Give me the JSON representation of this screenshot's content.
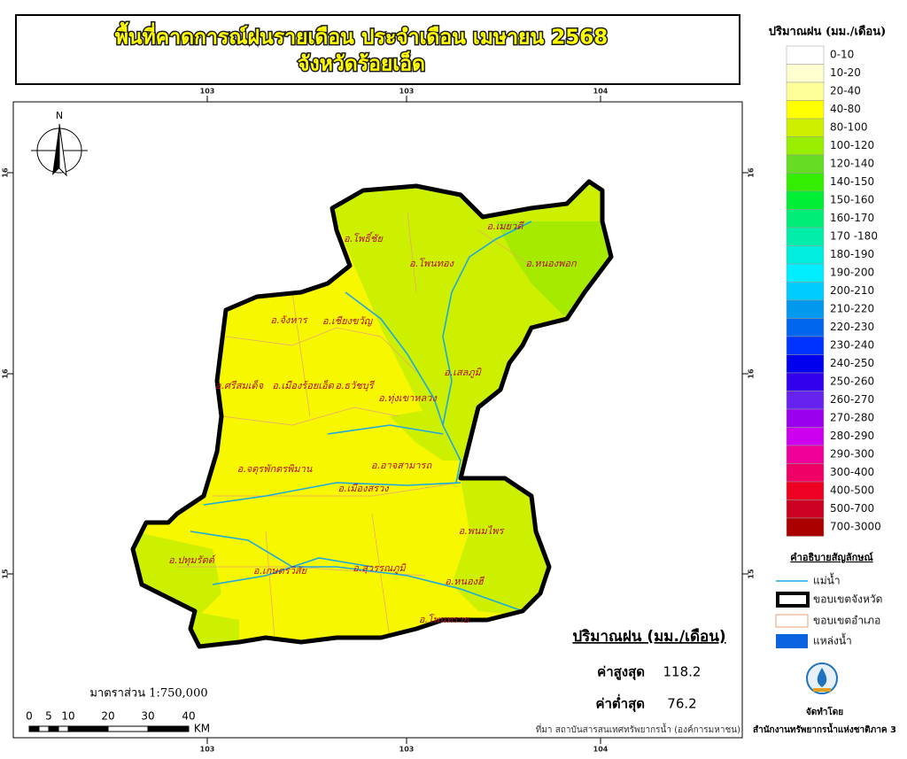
{
  "header": {
    "title": "พื้นที่คาดการณ์ฝนรายเดือน ประจำเดือน เมษายน 2568",
    "subtitle": "จังหวัดร้อยเอ็ด"
  },
  "legend": {
    "title": "ปริมาณฝน (มม./เดือน)",
    "classes": [
      {
        "label": "0-10",
        "color": "#ffffff"
      },
      {
        "label": "10-20",
        "color": "#ffffd0"
      },
      {
        "label": "20-40",
        "color": "#ffff99"
      },
      {
        "label": "40-80",
        "color": "#ffff00"
      },
      {
        "label": "80-100",
        "color": "#ccf000"
      },
      {
        "label": "100-120",
        "color": "#99ee00"
      },
      {
        "label": "120-140",
        "color": "#66dd22"
      },
      {
        "label": "140-150",
        "color": "#33ee00"
      },
      {
        "label": "150-160",
        "color": "#00ee33"
      },
      {
        "label": "160-170",
        "color": "#00ee77"
      },
      {
        "label": "170 -180",
        "color": "#00eeaa"
      },
      {
        "label": "180-190",
        "color": "#00eedd"
      },
      {
        "label": "190-200",
        "color": "#00eeff"
      },
      {
        "label": "200-210",
        "color": "#00ccff"
      },
      {
        "label": "210-220",
        "color": "#0099ee"
      },
      {
        "label": "220-230",
        "color": "#0066ee"
      },
      {
        "label": "230-240",
        "color": "#0033ff"
      },
      {
        "label": "240-250",
        "color": "#0000ee"
      },
      {
        "label": "250-260",
        "color": "#3300ee"
      },
      {
        "label": "260-270",
        "color": "#6622ee"
      },
      {
        "label": "270-280",
        "color": "#9900ee"
      },
      {
        "label": "280-290",
        "color": "#cc00ee"
      },
      {
        "label": "290-300",
        "color": "#ee0099"
      },
      {
        "label": "300-400",
        "color": "#ee0066"
      },
      {
        "label": "400-500",
        "color": "#ee0022"
      },
      {
        "label": "500-700",
        "color": "#cc0022"
      },
      {
        "label": "700-3000",
        "color": "#aa0000"
      }
    ]
  },
  "map": {
    "north": "N",
    "coords_top": [
      "103",
      "103",
      "104"
    ],
    "coords_side": [
      "16",
      "16",
      "15"
    ],
    "districts": [
      "อ.โพธิ์ชัย",
      "อ.เมยวดี",
      "อ.โพนทอง",
      "อ.หนองพอก",
      "อ.จังหาร",
      "อ.เชียงขวัญ",
      "อ.เสลภูมิ",
      "อ.ศรีสมเด็จ",
      "อ.เมืองร้อยเอ็ด",
      "อ.ธวัชบุรี",
      "อ.ทุ่งเขาหลวง",
      "อ.จตุรพักตรพิมาน",
      "อ.อาจสามารถ",
      "อ.เมืองสรวง",
      "อ.พนมไพร",
      "อ.ปทุมรัตต์",
      "อ.เกษตรวิสัย",
      "อ.สุวรรณภูมิ",
      "อ.หนองฮี",
      "อ.โพนทราย"
    ],
    "scale": {
      "text": "มาตราส่วน 1:750,000",
      "labels": [
        "0",
        "5",
        "10",
        "20",
        "30",
        "40",
        "KM"
      ]
    },
    "source": "ที่มา  สถาบันสารสนเทศทรัพยากรน้ำ (องค์การมหาชน)"
  },
  "stats": {
    "title": "ปริมาณฝน (มม./เดือน)",
    "max_label": "ค่าสูงสุด",
    "max_value": "118.2",
    "min_label": "ค่าต่ำสุด",
    "min_value": "76.2"
  },
  "symbols": {
    "title": "คำอธิบายสัญลักษณ์",
    "items": [
      "แม่น้ำ",
      "ขอบเขตจังหวัด",
      "ขอบเขตอำเภอ",
      "แหล่งน้ำ"
    ],
    "producer_label": "จัดทำโดย",
    "producer": "สำนักงานทรัพยากรน้ำแห่งชาติภาค 3"
  }
}
